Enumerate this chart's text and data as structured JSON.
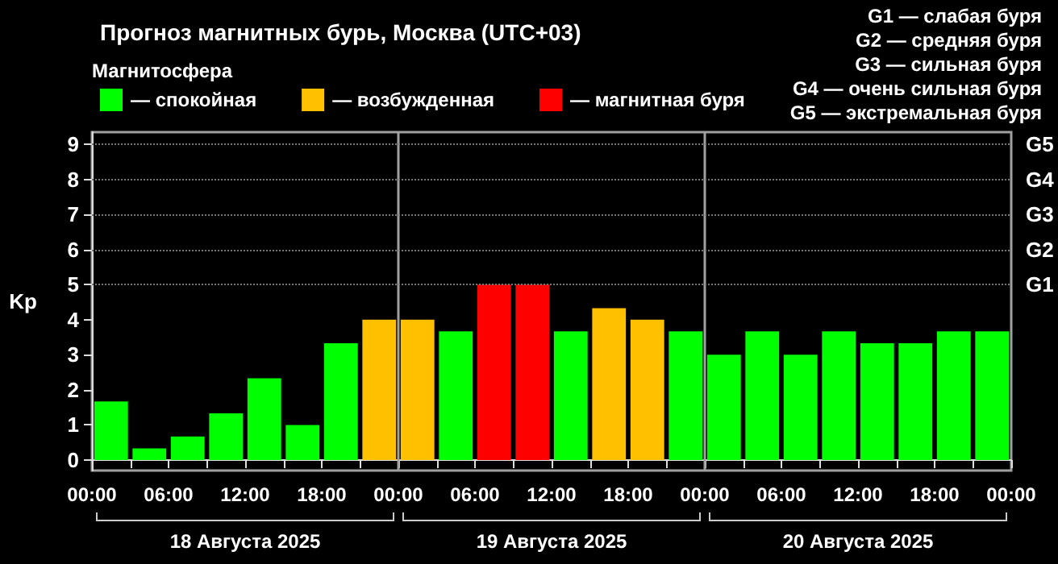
{
  "chart_data": {
    "type": "bar",
    "title": "Прогноз магнитных бурь, Москва (UTC+03)",
    "legend_title": "Магнитосфера",
    "ylabel": "Kp",
    "x": [
      "2025-08-18T01:30",
      "2025-08-18T04:30",
      "2025-08-18T07:30",
      "2025-08-18T10:30",
      "2025-08-18T13:30",
      "2025-08-18T16:30",
      "2025-08-18T19:30",
      "2025-08-18T22:30",
      "2025-08-19T01:30",
      "2025-08-19T04:30",
      "2025-08-19T07:30",
      "2025-08-19T10:30",
      "2025-08-19T13:30",
      "2025-08-19T16:30",
      "2025-08-19T19:30",
      "2025-08-19T22:30",
      "2025-08-20T01:30",
      "2025-08-20T04:30",
      "2025-08-20T07:30",
      "2025-08-20T10:30",
      "2025-08-20T13:30",
      "2025-08-20T16:30",
      "2025-08-20T19:30",
      "2025-08-20T22:30"
    ],
    "series": [
      {
        "name": "— спокойная",
        "color": "#00ff00",
        "values": [
          1.67,
          0.33,
          0.67,
          1.33,
          2.33,
          1.0,
          3.33,
          null,
          null,
          3.67,
          null,
          null,
          3.67,
          null,
          null,
          3.67,
          3.0,
          3.67,
          3.0,
          3.67,
          3.33,
          3.33,
          3.67,
          3.67
        ]
      },
      {
        "name": "— возбужденная",
        "color": "#ffc000",
        "values": [
          null,
          null,
          null,
          null,
          null,
          null,
          null,
          4.0,
          4.0,
          null,
          null,
          null,
          null,
          4.33,
          4.0,
          null,
          null,
          null,
          null,
          null,
          null,
          null,
          null,
          null
        ]
      },
      {
        "name": "— магнитная буря",
        "color": "#ff0000",
        "values": [
          null,
          null,
          null,
          null,
          null,
          null,
          null,
          null,
          null,
          null,
          5.0,
          5.0,
          null,
          null,
          null,
          null,
          null,
          null,
          null,
          null,
          null,
          null,
          null,
          null
        ]
      }
    ],
    "xlim": [
      "2025-08-18T00:00",
      "2025-08-21T00:00"
    ],
    "xticks": [
      {
        "value": "2025-08-18T00:00",
        "label": "00:00"
      },
      {
        "value": "2025-08-18T03:00",
        "label": null
      },
      {
        "value": "2025-08-18T06:00",
        "label": "06:00"
      },
      {
        "value": "2025-08-18T09:00",
        "label": null
      },
      {
        "value": "2025-08-18T12:00",
        "label": "12:00"
      },
      {
        "value": "2025-08-18T15:00",
        "label": null
      },
      {
        "value": "2025-08-18T18:00",
        "label": "18:00"
      },
      {
        "value": "2025-08-18T21:00",
        "label": null
      },
      {
        "value": "2025-08-19T00:00",
        "label": "00:00"
      },
      {
        "value": "2025-08-19T03:00",
        "label": null
      },
      {
        "value": "2025-08-19T06:00",
        "label": "06:00"
      },
      {
        "value": "2025-08-19T09:00",
        "label": null
      },
      {
        "value": "2025-08-19T12:00",
        "label": "12:00"
      },
      {
        "value": "2025-08-19T15:00",
        "label": null
      },
      {
        "value": "2025-08-19T18:00",
        "label": "18:00"
      },
      {
        "value": "2025-08-19T21:00",
        "label": null
      },
      {
        "value": "2025-08-20T00:00",
        "label": "00:00"
      },
      {
        "value": "2025-08-20T03:00",
        "label": null
      },
      {
        "value": "2025-08-20T06:00",
        "label": "06:00"
      },
      {
        "value": "2025-08-20T09:00",
        "label": null
      },
      {
        "value": "2025-08-20T12:00",
        "label": "12:00"
      },
      {
        "value": "2025-08-20T15:00",
        "label": null
      },
      {
        "value": "2025-08-20T18:00",
        "label": "18:00"
      },
      {
        "value": "2025-08-20T21:00",
        "label": null
      },
      {
        "value": "2025-08-21T00:00",
        "label": "00:00"
      }
    ],
    "ylim": [
      -0.3,
      9.35
    ],
    "yticks": [
      0,
      1,
      2,
      3,
      4,
      5,
      6,
      7,
      8,
      9
    ],
    "ref_lines": [
      {
        "axis": "x",
        "value": "2025-08-19T00:00",
        "color": "#a0a0a0"
      },
      {
        "axis": "x",
        "value": "2025-08-20T00:00",
        "color": "#a0a0a0"
      },
      {
        "axis": "y",
        "value": 5,
        "label": "G1",
        "color": "#777777",
        "line_style": "dotted"
      },
      {
        "axis": "y",
        "value": 6,
        "label": "G2",
        "color": "#777777",
        "line_style": "dotted"
      },
      {
        "axis": "y",
        "value": 7,
        "label": "G3",
        "color": "#777777",
        "line_style": "dotted"
      },
      {
        "axis": "y",
        "value": 8,
        "label": "G4",
        "color": "#777777",
        "line_style": "dotted"
      },
      {
        "axis": "y",
        "value": 9,
        "label": "G5",
        "color": "#777777",
        "line_style": "dotted"
      }
    ],
    "annotations": [
      "G1 — слабая буря",
      "G2 — средняя буря",
      "G3 — сильная буря",
      "G4 — очень сильная буря",
      "G5 — экстремальная буря",
      "18 Августа 2025",
      "19 Августа 2025",
      "20 Августа 2025"
    ],
    "legend": "top left"
  }
}
